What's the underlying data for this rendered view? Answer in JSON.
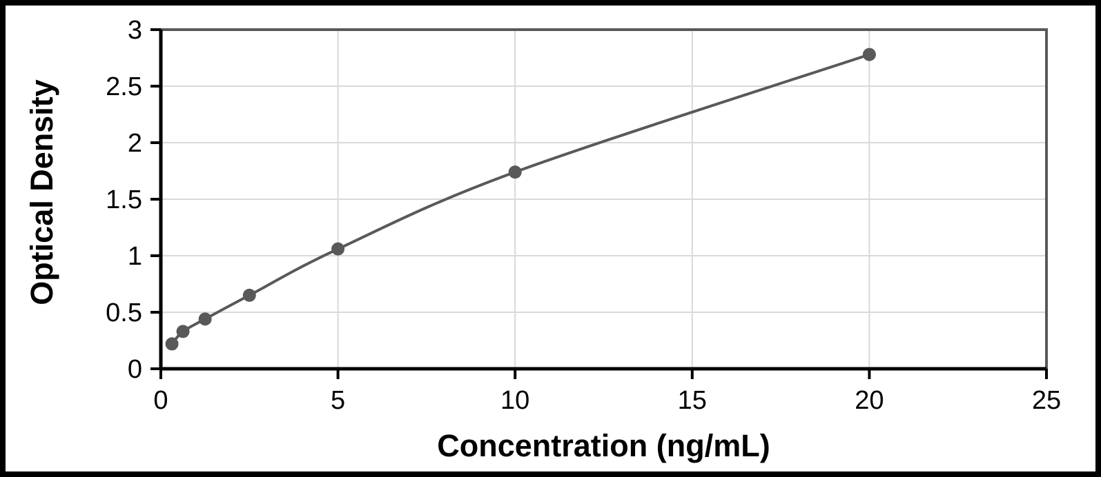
{
  "chart_data": {
    "type": "scatter",
    "line_style": "smooth",
    "title": "",
    "xlabel": "Concentration (ng/mL)",
    "ylabel": "Optical Density",
    "x": [
      0.313,
      0.625,
      1.25,
      2.5,
      5,
      10,
      20
    ],
    "y": [
      0.22,
      0.33,
      0.44,
      0.65,
      1.06,
      1.74,
      2.78
    ],
    "xlim": [
      0,
      25
    ],
    "ylim": [
      0,
      3
    ],
    "xticks": [
      0,
      5,
      10,
      15,
      20,
      25
    ],
    "yticks": [
      0,
      0.5,
      1,
      1.5,
      2,
      2.5,
      3
    ],
    "grid": true,
    "legend": false,
    "colors": {
      "series": "#595959",
      "gridline": "#d9d9d9",
      "axis": "#000000",
      "plot_border": "#595959",
      "background": "#ffffff",
      "frame_border": "#000000",
      "text": "#000000"
    }
  }
}
